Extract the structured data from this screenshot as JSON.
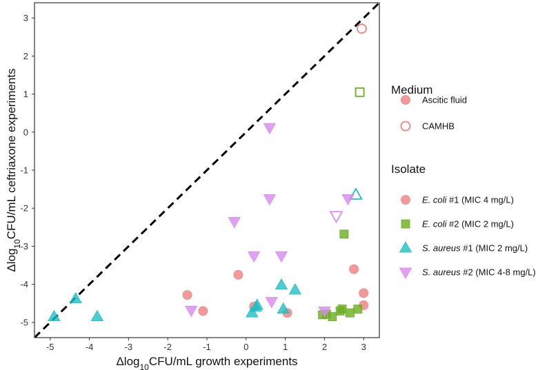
{
  "chart_data": {
    "type": "scatter",
    "title": "",
    "xlabel": "Δlog10CFU/mL growth experiments",
    "ylabel": "Δlog10CFU/mL ceftriaxone experiments",
    "xlim": [
      -5.4,
      3.4
    ],
    "ylim": [
      -5.4,
      3.4
    ],
    "x_ticks": [
      -5,
      -4,
      -3,
      -2,
      -1,
      0,
      1,
      2,
      3
    ],
    "y_ticks": [
      -5,
      -4,
      -3,
      -2,
      -1,
      0,
      1,
      2,
      3
    ],
    "grid": false,
    "reference_line": {
      "type": "identity",
      "style": "dashed",
      "color": "#000000"
    },
    "legend_position": "right",
    "legend": {
      "medium_title": "Medium",
      "medium": [
        {
          "label": "Ascitic fluid",
          "fill": "filled"
        },
        {
          "label": "CAMHB",
          "fill": "open"
        }
      ],
      "isolate_title": "Isolate",
      "isolates": [
        {
          "key": "ecoli1",
          "name": "E. coli",
          "suffix": " #1 (MIC 4 mg/L)",
          "shape": "circle",
          "color": "#F08080"
        },
        {
          "key": "ecoli2",
          "name": "E. coli",
          "suffix": " #2 (MIC 2 mg/L)",
          "shape": "square",
          "color": "#6AAE1F"
        },
        {
          "key": "saureus1",
          "name": "S. aureus",
          "suffix": " #1 (MIC 2 mg/L)",
          "shape": "triangle-up",
          "color": "#1EBFC4"
        },
        {
          "key": "saureus2",
          "name": "S. aureus",
          "suffix": " #2 (MIC 4-8 mg/L)",
          "shape": "triangle-down",
          "color": "#D98AF0"
        }
      ]
    },
    "series": [
      {
        "name": "E. coli #1",
        "key": "ecoli1",
        "medium": "Ascitic fluid",
        "x": [
          -1.5,
          -1.1,
          -0.2,
          0.2,
          1.05,
          2.75,
          3.0,
          3.0
        ],
        "y": [
          -4.28,
          -4.7,
          -3.75,
          -4.58,
          -4.75,
          -3.6,
          -4.23,
          -4.55
        ]
      },
      {
        "name": "E. coli #1",
        "key": "ecoli1",
        "medium": "CAMHB",
        "x": [
          2.95
        ],
        "y": [
          2.72
        ]
      },
      {
        "name": "E. coli #2",
        "key": "ecoli2",
        "medium": "Ascitic fluid",
        "x": [
          1.95,
          2.05,
          2.2,
          2.4,
          2.45,
          2.5,
          2.65,
          2.85
        ],
        "y": [
          -4.8,
          -4.78,
          -4.85,
          -4.7,
          -4.65,
          -2.68,
          -4.75,
          -4.65
        ]
      },
      {
        "name": "E. coli #2",
        "key": "ecoli2",
        "medium": "CAMHB",
        "x": [
          2.9
        ],
        "y": [
          1.05
        ]
      },
      {
        "name": "S. aureus #1",
        "key": "saureus1",
        "medium": "Ascitic fluid",
        "x": [
          -4.9,
          -4.35,
          -3.8,
          0.15,
          0.25,
          0.28,
          0.9,
          0.95,
          1.25
        ],
        "y": [
          -4.85,
          -4.38,
          -4.85,
          -4.75,
          -4.6,
          -4.55,
          -4.02,
          -4.65,
          -4.15
        ]
      },
      {
        "name": "S. aureus #1",
        "key": "saureus1",
        "medium": "CAMHB",
        "x": [
          2.8
        ],
        "y": [
          -1.65
        ]
      },
      {
        "name": "S. aureus #2",
        "key": "saureus2",
        "medium": "Ascitic fluid",
        "x": [
          -1.4,
          -0.3,
          0.2,
          0.6,
          0.6,
          0.65,
          0.9,
          2.0,
          2.6
        ],
        "y": [
          -4.68,
          -2.35,
          -3.25,
          0.12,
          -1.75,
          -4.45,
          -3.25,
          -4.7,
          -1.75
        ]
      },
      {
        "name": "S. aureus #2",
        "key": "saureus2",
        "medium": "CAMHB",
        "x": [
          2.3
        ],
        "y": [
          -2.2
        ]
      }
    ]
  }
}
